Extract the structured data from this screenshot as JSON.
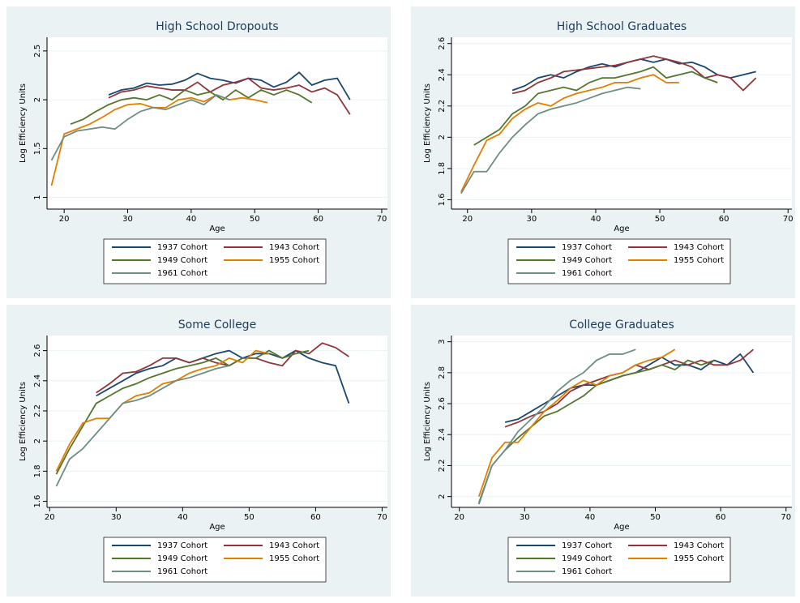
{
  "chart_data": [
    {
      "type": "line",
      "title": "High School Dropouts",
      "x_label": "Age",
      "y_label": "Log Efficiency Units",
      "xlim": [
        17.3,
        70.9
      ],
      "xticks": [
        20,
        30,
        40,
        50,
        60,
        70
      ],
      "ylim": [
        0.88,
        2.64
      ],
      "yticks": [
        1,
        1.5,
        2,
        2.5
      ],
      "grid": true,
      "series": [
        {
          "name": "1937 Cohort",
          "color": "#1a476f",
          "x": [
            27,
            29,
            31,
            33,
            35,
            37,
            39,
            41,
            43,
            45,
            47,
            49,
            51,
            53,
            55,
            57,
            59,
            61,
            63,
            65
          ],
          "values": [
            2.05,
            2.1,
            2.12,
            2.17,
            2.15,
            2.16,
            2.2,
            2.27,
            2.22,
            2.2,
            2.17,
            2.22,
            2.2,
            2.13,
            2.18,
            2.28,
            2.15,
            2.2,
            2.22,
            2.0
          ]
        },
        {
          "name": "1943 Cohort",
          "color": "#90353b",
          "x": [
            27,
            29,
            31,
            33,
            35,
            37,
            39,
            41,
            43,
            45,
            47,
            49,
            51,
            53,
            55,
            57,
            59,
            61,
            63,
            65
          ],
          "values": [
            2.02,
            2.08,
            2.1,
            2.14,
            2.12,
            2.1,
            2.1,
            2.18,
            2.08,
            2.15,
            2.18,
            2.22,
            2.12,
            2.1,
            2.12,
            2.15,
            2.08,
            2.12,
            2.05,
            1.85
          ]
        },
        {
          "name": "1949 Cohort",
          "color": "#55752f",
          "x": [
            21,
            23,
            25,
            27,
            29,
            31,
            33,
            35,
            37,
            39,
            41,
            43,
            45,
            47,
            49,
            51,
            53,
            55,
            57,
            59
          ],
          "values": [
            1.75,
            1.8,
            1.88,
            1.95,
            2.0,
            2.02,
            2.0,
            2.05,
            2.0,
            2.1,
            2.05,
            2.08,
            2.0,
            2.1,
            2.02,
            2.1,
            2.05,
            2.1,
            2.05,
            1.97
          ]
        },
        {
          "name": "1955 Cohort",
          "color": "#e37e00",
          "x": [
            18,
            20,
            22,
            24,
            26,
            28,
            30,
            32,
            34,
            36,
            38,
            40,
            42,
            44,
            46,
            48,
            50,
            52
          ],
          "values": [
            1.12,
            1.65,
            1.7,
            1.75,
            1.82,
            1.9,
            1.95,
            1.96,
            1.92,
            1.92,
            2.0,
            2.02,
            1.98,
            2.05,
            2.0,
            2.02,
            2.0,
            1.97
          ]
        },
        {
          "name": "1961 Cohort",
          "color": "#6e8e84",
          "x": [
            18,
            20,
            22,
            24,
            26,
            28,
            30,
            32,
            34,
            36,
            38,
            40,
            42,
            44,
            46
          ],
          "values": [
            1.38,
            1.62,
            1.68,
            1.7,
            1.72,
            1.7,
            1.8,
            1.88,
            1.92,
            1.9,
            1.95,
            2.0,
            1.95,
            2.05,
            2.0
          ]
        }
      ]
    },
    {
      "type": "line",
      "title": "High School Graduates",
      "x_label": "Age",
      "y_label": "Log Efficiency Units",
      "xlim": [
        17.5,
        70.6
      ],
      "xticks": [
        20,
        30,
        40,
        50,
        60,
        70
      ],
      "ylim": [
        1.54,
        2.64
      ],
      "yticks": [
        1.6,
        1.8,
        2,
        2.2,
        2.4,
        2.6
      ],
      "grid": true,
      "series": [
        {
          "name": "1937 Cohort",
          "color": "#1a476f",
          "x": [
            27,
            29,
            31,
            33,
            35,
            37,
            39,
            41,
            43,
            45,
            47,
            49,
            51,
            53,
            55,
            57,
            59,
            61,
            63,
            65
          ],
          "values": [
            2.3,
            2.33,
            2.38,
            2.4,
            2.38,
            2.42,
            2.45,
            2.47,
            2.45,
            2.48,
            2.5,
            2.48,
            2.5,
            2.47,
            2.48,
            2.45,
            2.4,
            2.38,
            2.4,
            2.42
          ]
        },
        {
          "name": "1943 Cohort",
          "color": "#90353b",
          "x": [
            27,
            29,
            31,
            33,
            35,
            37,
            39,
            41,
            43,
            45,
            47,
            49,
            51,
            53,
            55,
            57,
            59,
            61,
            63,
            65
          ],
          "values": [
            2.28,
            2.3,
            2.35,
            2.38,
            2.42,
            2.43,
            2.44,
            2.45,
            2.46,
            2.48,
            2.5,
            2.52,
            2.5,
            2.48,
            2.45,
            2.38,
            2.4,
            2.38,
            2.3,
            2.38
          ]
        },
        {
          "name": "1949 Cohort",
          "color": "#55752f",
          "x": [
            21,
            23,
            25,
            27,
            29,
            31,
            33,
            35,
            37,
            39,
            41,
            43,
            45,
            47,
            49,
            51,
            53,
            55,
            57,
            59
          ],
          "values": [
            1.95,
            2.0,
            2.05,
            2.15,
            2.2,
            2.28,
            2.3,
            2.32,
            2.3,
            2.35,
            2.38,
            2.38,
            2.4,
            2.42,
            2.45,
            2.38,
            2.4,
            2.42,
            2.38,
            2.35
          ]
        },
        {
          "name": "1955 Cohort",
          "color": "#e37e00",
          "x": [
            19,
            21,
            23,
            25,
            27,
            29,
            31,
            33,
            35,
            37,
            39,
            41,
            43,
            45,
            47,
            49,
            51,
            53
          ],
          "values": [
            1.65,
            1.82,
            1.98,
            2.02,
            2.12,
            2.18,
            2.22,
            2.2,
            2.25,
            2.28,
            2.3,
            2.32,
            2.35,
            2.35,
            2.38,
            2.4,
            2.35,
            2.35
          ]
        },
        {
          "name": "1961 Cohort",
          "color": "#6e8e84",
          "x": [
            19,
            21,
            23,
            25,
            27,
            29,
            31,
            33,
            35,
            37,
            39,
            41,
            43,
            45,
            47
          ],
          "values": [
            1.64,
            1.78,
            1.78,
            1.9,
            2.0,
            2.08,
            2.15,
            2.18,
            2.2,
            2.22,
            2.25,
            2.28,
            2.3,
            2.32,
            2.31
          ]
        }
      ]
    },
    {
      "type": "line",
      "title": "Some College",
      "x_label": "Age",
      "y_label": "Log Efficiency Units",
      "xlim": [
        19.6,
        70.8
      ],
      "xticks": [
        20,
        30,
        40,
        50,
        60,
        70
      ],
      "ylim": [
        1.56,
        2.7
      ],
      "yticks": [
        1.6,
        1.8,
        2,
        2.2,
        2.4,
        2.6
      ],
      "grid": true,
      "series": [
        {
          "name": "1937 Cohort",
          "color": "#1a476f",
          "x": [
            27,
            29,
            31,
            33,
            35,
            37,
            39,
            41,
            43,
            45,
            47,
            49,
            51,
            53,
            55,
            57,
            59,
            61,
            63,
            65
          ],
          "values": [
            2.3,
            2.35,
            2.4,
            2.45,
            2.48,
            2.5,
            2.55,
            2.52,
            2.55,
            2.58,
            2.6,
            2.55,
            2.58,
            2.58,
            2.55,
            2.6,
            2.55,
            2.52,
            2.5,
            2.25
          ]
        },
        {
          "name": "1943 Cohort",
          "color": "#90353b",
          "x": [
            27,
            29,
            31,
            33,
            35,
            37,
            39,
            41,
            43,
            45,
            47,
            49,
            51,
            53,
            55,
            57,
            59,
            61,
            63,
            65
          ],
          "values": [
            2.32,
            2.38,
            2.45,
            2.46,
            2.5,
            2.55,
            2.55,
            2.52,
            2.55,
            2.52,
            2.5,
            2.55,
            2.55,
            2.52,
            2.5,
            2.6,
            2.58,
            2.65,
            2.62,
            2.56
          ]
        },
        {
          "name": "1949 Cohort",
          "color": "#55752f",
          "x": [
            21,
            23,
            25,
            27,
            29,
            31,
            33,
            35,
            37,
            39,
            41,
            43,
            45,
            47,
            49,
            51,
            53,
            55,
            57,
            59
          ],
          "values": [
            1.78,
            1.95,
            2.1,
            2.25,
            2.3,
            2.35,
            2.38,
            2.42,
            2.45,
            2.48,
            2.5,
            2.52,
            2.55,
            2.5,
            2.55,
            2.55,
            2.6,
            2.55,
            2.58,
            2.6
          ]
        },
        {
          "name": "1955 Cohort",
          "color": "#e37e00",
          "x": [
            21,
            23,
            25,
            27,
            29,
            31,
            33,
            35,
            37,
            39,
            41,
            43,
            45,
            47,
            49,
            51,
            53
          ],
          "values": [
            1.8,
            1.98,
            2.12,
            2.15,
            2.15,
            2.25,
            2.3,
            2.32,
            2.38,
            2.4,
            2.45,
            2.48,
            2.5,
            2.55,
            2.52,
            2.6,
            2.58
          ]
        },
        {
          "name": "1961 Cohort",
          "color": "#6e8e84",
          "x": [
            21,
            23,
            25,
            27,
            29,
            31,
            33,
            35,
            37,
            39,
            41,
            43,
            45,
            47
          ],
          "values": [
            1.7,
            1.88,
            1.95,
            2.05,
            2.15,
            2.25,
            2.27,
            2.3,
            2.35,
            2.4,
            2.42,
            2.45,
            2.48,
            2.5
          ]
        }
      ]
    },
    {
      "type": "line",
      "title": "College Graduates",
      "x_label": "Age",
      "y_label": "Log Efficiency Units",
      "xlim": [
        18.8,
        70.9
      ],
      "xticks": [
        20,
        30,
        40,
        50,
        60,
        70
      ],
      "ylim": [
        1.93,
        3.04
      ],
      "yticks": [
        2,
        2.2,
        2.4,
        2.6,
        2.8,
        3
      ],
      "grid": true,
      "series": [
        {
          "name": "1937 Cohort",
          "color": "#1a476f",
          "x": [
            27,
            29,
            31,
            33,
            35,
            37,
            39,
            41,
            43,
            45,
            47,
            49,
            51,
            53,
            55,
            57,
            59,
            61,
            63,
            65
          ],
          "values": [
            2.48,
            2.5,
            2.55,
            2.6,
            2.65,
            2.7,
            2.72,
            2.72,
            2.75,
            2.78,
            2.8,
            2.85,
            2.9,
            2.85,
            2.85,
            2.82,
            2.88,
            2.85,
            2.92,
            2.8
          ]
        },
        {
          "name": "1943 Cohort",
          "color": "#90353b",
          "x": [
            27,
            29,
            31,
            33,
            35,
            37,
            39,
            41,
            43,
            45,
            47,
            49,
            51,
            53,
            55,
            57,
            59,
            61,
            63,
            65
          ],
          "values": [
            2.45,
            2.48,
            2.52,
            2.55,
            2.6,
            2.68,
            2.72,
            2.75,
            2.78,
            2.8,
            2.85,
            2.82,
            2.85,
            2.88,
            2.85,
            2.88,
            2.85,
            2.85,
            2.88,
            2.95
          ]
        },
        {
          "name": "1949 Cohort",
          "color": "#55752f",
          "x": [
            23,
            25,
            27,
            29,
            31,
            33,
            35,
            37,
            39,
            41,
            43,
            45,
            47,
            49,
            51,
            53,
            55,
            57,
            59
          ],
          "values": [
            1.96,
            2.2,
            2.3,
            2.38,
            2.45,
            2.52,
            2.55,
            2.6,
            2.65,
            2.72,
            2.75,
            2.78,
            2.8,
            2.82,
            2.85,
            2.82,
            2.88,
            2.85,
            2.88
          ]
        },
        {
          "name": "1955 Cohort",
          "color": "#e37e00",
          "x": [
            23,
            25,
            27,
            29,
            31,
            33,
            35,
            37,
            39,
            41,
            43,
            45,
            47,
            49,
            51,
            53
          ],
          "values": [
            2.0,
            2.25,
            2.35,
            2.35,
            2.45,
            2.55,
            2.62,
            2.7,
            2.75,
            2.72,
            2.78,
            2.8,
            2.85,
            2.88,
            2.9,
            2.95
          ]
        },
        {
          "name": "1961 Cohort",
          "color": "#6e8e84",
          "x": [
            23,
            25,
            27,
            29,
            31,
            33,
            35,
            37,
            39,
            41,
            43,
            45,
            47
          ],
          "values": [
            1.95,
            2.2,
            2.3,
            2.42,
            2.5,
            2.58,
            2.68,
            2.75,
            2.8,
            2.88,
            2.92,
            2.92,
            2.95
          ]
        }
      ]
    }
  ]
}
